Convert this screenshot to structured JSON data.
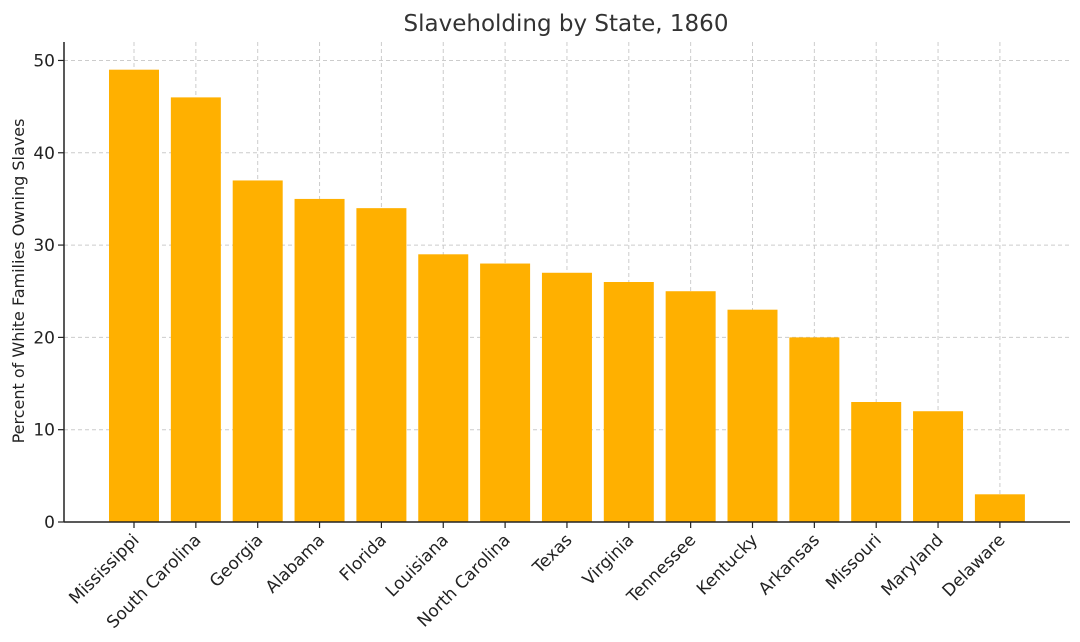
{
  "chart_data": {
    "type": "bar",
    "title": "Slaveholding by State, 1860",
    "xlabel": "",
    "ylabel": "Percent of White Families Owning Slaves",
    "categories": [
      "Mississippi",
      "South Carolina",
      "Georgia",
      "Alabama",
      "Florida",
      "Louisiana",
      "North Carolina",
      "Texas",
      "Virginia",
      "Tennessee",
      "Kentucky",
      "Arkansas",
      "Missouri",
      "Maryland",
      "Delaware"
    ],
    "values": [
      49,
      46,
      37,
      35,
      34,
      29,
      28,
      27,
      26,
      25,
      23,
      20,
      13,
      12,
      3
    ],
    "ylim": [
      0,
      52
    ],
    "yticks": [
      0,
      10,
      20,
      30,
      40,
      50
    ],
    "grid": true,
    "bar_color": "#FFB000"
  }
}
